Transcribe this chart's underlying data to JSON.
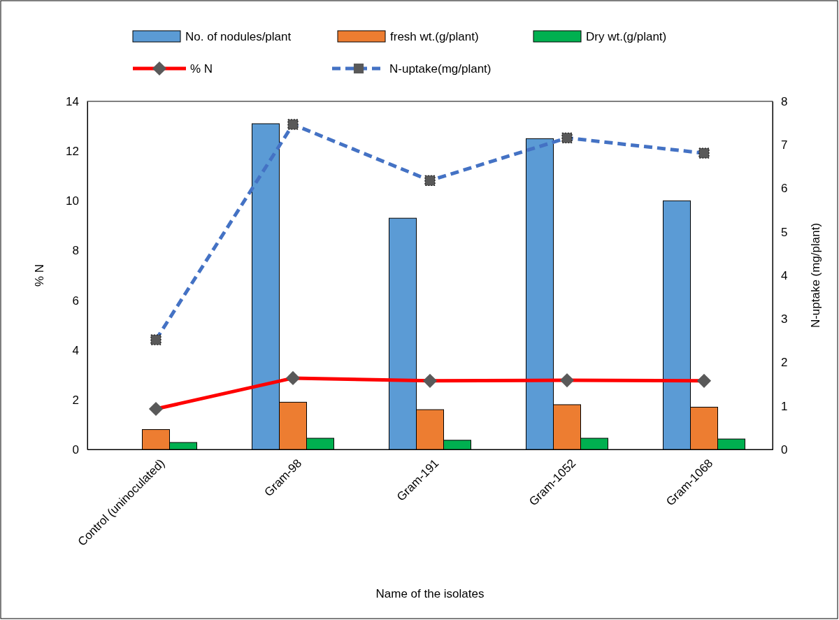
{
  "chart_data": {
    "type": "bar",
    "xlabel": "Name of the isolates",
    "ylabel": "% N",
    "y2label": "N-uptake (mg/plant)",
    "categories": [
      "Control (uninoculated)",
      "Gram-98",
      "Gram-191",
      "Gram-1052",
      "Gram-1068"
    ],
    "series": [
      {
        "name": "No. of nodules/plant",
        "color": "#5b9bd5",
        "values": [
          0,
          13.1,
          9.3,
          12.5,
          10.0
        ]
      },
      {
        "name": "fresh wt.(g/plant)",
        "color": "#ed7d31",
        "values": [
          0.8,
          1.9,
          1.6,
          1.8,
          1.7
        ]
      },
      {
        "name": "Dry wt.(g/plant)",
        "color": "#00b050",
        "values": [
          0.28,
          0.45,
          0.37,
          0.45,
          0.42
        ]
      },
      {
        "name": "% N",
        "type": "line",
        "color": "#ff0000",
        "marker": "diamond",
        "line_style": "solid",
        "values": [
          1.63,
          2.87,
          2.76,
          2.78,
          2.76
        ]
      },
      {
        "name": "N-uptake(mg/plant)",
        "type": "line",
        "axis": "y2",
        "color": "#4472c4",
        "marker": "square",
        "line_style": "dashed",
        "values": [
          2.52,
          7.47,
          6.18,
          7.16,
          6.81
        ]
      }
    ],
    "ylim": [
      0,
      14
    ],
    "yticks": [
      0,
      2,
      4,
      6,
      8,
      10,
      12,
      14
    ],
    "y2lim": [
      0,
      8
    ],
    "y2ticks": [
      0,
      1,
      2,
      3,
      4,
      5,
      6,
      7,
      8
    ],
    "grid": false,
    "legend": "top"
  }
}
